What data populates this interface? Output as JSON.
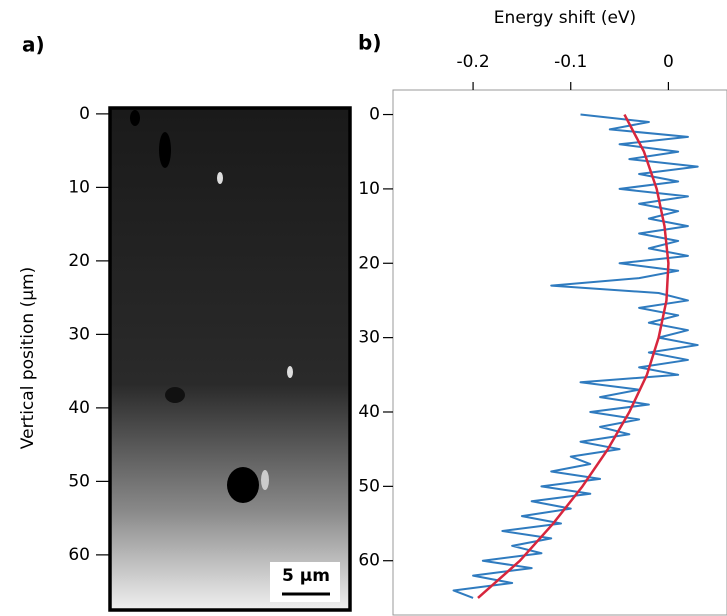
{
  "chart_data": [
    {
      "type": "image",
      "panel_label": "a)",
      "y_label": "Vertical position (µm)",
      "scale_bar_label": "5 µm",
      "ylim": [
        -0.8,
        67.5
      ],
      "yticks": [
        0,
        10,
        20,
        30,
        40,
        50,
        60
      ],
      "y_reversed": true
    },
    {
      "type": "line",
      "panel_label": "b)",
      "x_label": "Energy shift (eV)",
      "xlim": [
        -0.282,
        0.06
      ],
      "xticks": [
        -0.2,
        -0.1,
        0
      ],
      "ylim": [
        -3.3,
        67.3
      ],
      "yticks": [
        0,
        10,
        20,
        30,
        40,
        50,
        60
      ],
      "y_reversed": true,
      "series": [
        {
          "color": "#2f7bbf",
          "positions": [
            0,
            1,
            2,
            3,
            4,
            5,
            6,
            7,
            8,
            9,
            10,
            11,
            12,
            13,
            14,
            15,
            16,
            17,
            18,
            19,
            20,
            21,
            22,
            23,
            24,
            25,
            26,
            27,
            28,
            29,
            30,
            31,
            32,
            33,
            34,
            35,
            36,
            37,
            38,
            39,
            40,
            41,
            42,
            43,
            44,
            45,
            46,
            47,
            48,
            49,
            50,
            51,
            52,
            53,
            54,
            55,
            56,
            57,
            58,
            59,
            60,
            61,
            62,
            63,
            64,
            65
          ],
          "values": [
            -0.09,
            -0.02,
            -0.06,
            0.02,
            -0.05,
            0.01,
            -0.04,
            0.03,
            -0.03,
            0.01,
            -0.05,
            0.02,
            -0.03,
            0.01,
            -0.02,
            0.02,
            -0.03,
            0.01,
            -0.02,
            0.02,
            -0.05,
            0.01,
            -0.03,
            -0.12,
            -0.01,
            0.02,
            -0.03,
            0.01,
            -0.02,
            0.02,
            -0.01,
            0.03,
            -0.02,
            0.02,
            -0.03,
            0.01,
            -0.09,
            -0.03,
            -0.07,
            -0.02,
            -0.08,
            -0.03,
            -0.07,
            -0.04,
            -0.09,
            -0.05,
            -0.1,
            -0.08,
            -0.12,
            -0.07,
            -0.13,
            -0.08,
            -0.14,
            -0.1,
            -0.15,
            -0.11,
            -0.17,
            -0.12,
            -0.16,
            -0.13,
            -0.19,
            -0.14,
            -0.2,
            -0.16,
            -0.22,
            -0.2
          ]
        },
        {
          "color": "#d7263d",
          "positions": [
            0,
            5,
            10,
            15,
            20,
            25,
            30,
            35,
            40,
            45,
            50,
            55,
            60,
            65
          ],
          "values": [
            -0.045,
            -0.025,
            -0.012,
            -0.004,
            0,
            -0.002,
            -0.01,
            -0.022,
            -0.04,
            -0.062,
            -0.088,
            -0.118,
            -0.152,
            -0.195
          ]
        }
      ]
    }
  ]
}
